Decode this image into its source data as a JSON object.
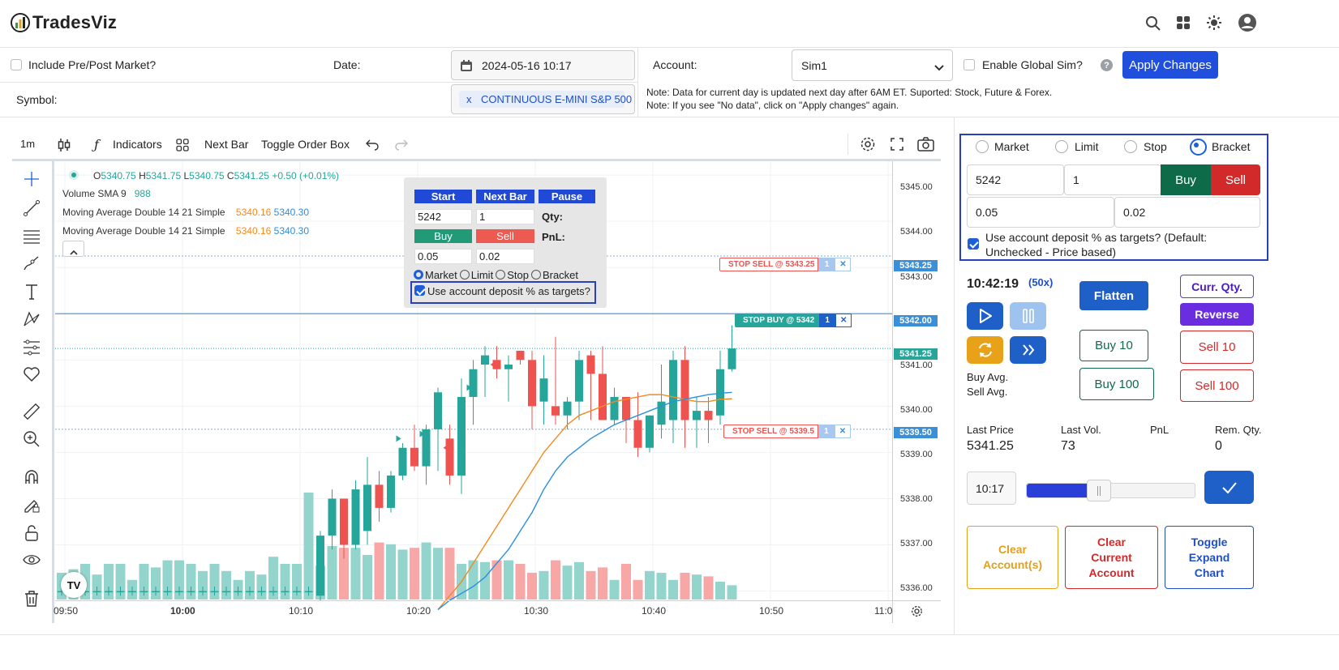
{
  "app": {
    "name": "TradesViz"
  },
  "controls": {
    "include_prepost_label": "Include Pre/Post Market?",
    "date_label": "Date:",
    "date_value": "2024-05-16 10:17",
    "account_label": "Account:",
    "account_value": "Sim1",
    "enable_global_sim_label": "Enable Global Sim?",
    "help_glyph": "?",
    "apply_label": "Apply Changes",
    "symbol_label": "Symbol:",
    "symbol_remove": "x",
    "symbol_value": "CONTINUOUS E-MINI S&P 500",
    "note1": "Note: Data for current day is updated next day after 6AM ET. Suported: Stock, Future & Forex.",
    "note2": "Note: If you see \"No data\", click on \"Apply changes\" again."
  },
  "toolbar": {
    "interval": "1m",
    "indicators": "Indicators",
    "next_bar": "Next Bar",
    "toggle_order_box": "Toggle Order Box"
  },
  "legend": {
    "ohlc": [
      {
        "k": "O",
        "v": "5340.75"
      },
      {
        "k": "H",
        "v": "5341.75"
      },
      {
        "k": "L",
        "v": "5340.75"
      },
      {
        "k": "C",
        "v": "5341.25"
      }
    ],
    "change": "+0.50 (+0.01%)",
    "volume_label": "Volume SMA 9",
    "volume_value": "988",
    "ma1_label": "Moving Average Double 14 21 Simple",
    "ma1_v1": "5340.16",
    "ma1_v2": "5340.30",
    "ma2_label": "Moving Average Double 14 21 Simple",
    "ma2_v1": "5340.16",
    "ma2_v2": "5340.30",
    "collapse": "^"
  },
  "chart_order_box": {
    "start": "Start",
    "next_bar": "Next Bar",
    "pause": "Pause",
    "price": "5242",
    "qty_value": "1",
    "qty_label": "Qty:",
    "buy": "Buy",
    "sell": "Sell",
    "pnl_label": "PnL:",
    "tp": "0.05",
    "sl": "0.02",
    "types": [
      "Market",
      "Limit",
      "Stop",
      "Bracket"
    ],
    "use_deposit": "Use account deposit % as targets?"
  },
  "orders": [
    {
      "label": "STOP SELL @ 5343.25",
      "qty": "1",
      "price": "5343.25"
    },
    {
      "label": "STOP BUY @ 5342",
      "qty": "1",
      "price": "5342.00"
    },
    {
      "label": "STOP SELL @ 5339.5",
      "qty": "1",
      "price": "5339.50"
    }
  ],
  "close_x": "✕",
  "last_tag": "5341.25",
  "y_axis": [
    "5345.00",
    "5344.00",
    "5343.00",
    "5341.00",
    "5340.00",
    "5339.00",
    "5338.00",
    "5337.00",
    "5336.00"
  ],
  "x_axis": [
    "09:50",
    "10:00",
    "10:10",
    "10:20",
    "10:30",
    "10:40",
    "10:50",
    "11:0"
  ],
  "tv_logo": "TV",
  "panel": {
    "order_types": [
      "Market",
      "Limit",
      "Stop",
      "Bracket"
    ],
    "price": "5242",
    "qty": "1",
    "buy": "Buy",
    "sell": "Sell",
    "tp": "0.05",
    "sl": "0.02",
    "use_deposit": "Use account deposit % as targets? (Default: Unchecked - Price based)",
    "time": "10:42:19",
    "speed": "(50x)",
    "flatten": "Flatten",
    "curr_qty": "Curr. Qty.",
    "reverse": "Reverse",
    "buy10": "Buy 10",
    "sell10": "Sell 10",
    "buy100": "Buy 100",
    "sell100": "Sell 100",
    "buy_avg": "Buy Avg.",
    "sell_avg": "Sell Avg.",
    "stats": [
      {
        "label": "Last Price",
        "value": "5341.25"
      },
      {
        "label": "Last Vol.",
        "value": "73"
      },
      {
        "label": "PnL",
        "value": ""
      },
      {
        "label": "Rem. Qty.",
        "value": "0"
      }
    ],
    "slider_time": "10:17",
    "slider_fraction": 0.43,
    "clear_accounts": "Clear Account(s)",
    "clear_current": "Clear Current Account",
    "toggle_expand": "Toggle Expand Chart"
  },
  "colors": {
    "up": "#26a69a",
    "down": "#ef5350",
    "accent": "#1e5fd8",
    "ma_fast": "#f5891f",
    "ma_slow": "#2b8fe0"
  },
  "chart_data": {
    "type": "candlestick",
    "ylim": [
      5335.8,
      5345.3
    ],
    "bars": [
      [
        5336.0,
        5336.1,
        5335.9,
        5336.0
      ],
      [
        5336.0,
        5336.1,
        5335.9,
        5336.0
      ],
      [
        5336.0,
        5336.1,
        5335.9,
        5336.0
      ],
      [
        5336.0,
        5336.1,
        5335.9,
        5336.0
      ],
      [
        5336.0,
        5336.1,
        5335.9,
        5336.0
      ],
      [
        5336.0,
        5336.1,
        5335.9,
        5336.0
      ],
      [
        5336.0,
        5336.1,
        5335.9,
        5336.0
      ],
      [
        5336.0,
        5336.1,
        5335.9,
        5336.0
      ],
      [
        5336.0,
        5336.1,
        5335.9,
        5336.0
      ],
      [
        5336.0,
        5336.1,
        5335.9,
        5336.0
      ],
      [
        5336.0,
        5336.1,
        5335.9,
        5336.0
      ],
      [
        5336.0,
        5336.1,
        5335.9,
        5336.0
      ],
      [
        5336.0,
        5336.1,
        5335.9,
        5336.0
      ],
      [
        5336.0,
        5336.1,
        5335.9,
        5336.0
      ],
      [
        5336.0,
        5336.1,
        5335.9,
        5336.0
      ],
      [
        5336.0,
        5336.1,
        5335.9,
        5336.0
      ],
      [
        5336.0,
        5336.1,
        5335.9,
        5336.0
      ],
      [
        5336.0,
        5336.1,
        5335.9,
        5336.0
      ],
      [
        5336.0,
        5336.1,
        5335.9,
        5336.0
      ],
      [
        5336.0,
        5336.1,
        5335.9,
        5336.0
      ],
      [
        5336.0,
        5336.1,
        5335.9,
        5336.0
      ],
      [
        5336.0,
        5336.1,
        5335.9,
        5336.0
      ],
      [
        5335.9,
        5337.3,
        5335.8,
        5337.2
      ],
      [
        5337.2,
        5338.2,
        5336.9,
        5338.0
      ],
      [
        5338.0,
        5338.0,
        5336.7,
        5337.0
      ],
      [
        5337.0,
        5338.4,
        5336.9,
        5338.2
      ],
      [
        5337.3,
        5338.9,
        5337.0,
        5338.3
      ],
      [
        5338.3,
        5338.6,
        5337.5,
        5337.8
      ],
      [
        5337.8,
        5338.6,
        5337.7,
        5338.5
      ],
      [
        5338.5,
        5339.2,
        5338.4,
        5339.1
      ],
      [
        5339.1,
        5339.6,
        5338.6,
        5338.7
      ],
      [
        5338.7,
        5339.6,
        5338.3,
        5339.5
      ],
      [
        5339.5,
        5340.4,
        5338.6,
        5340.3
      ],
      [
        5339.3,
        5339.6,
        5338.3,
        5338.5
      ],
      [
        5338.5,
        5340.6,
        5338.1,
        5340.2
      ],
      [
        5340.2,
        5341.0,
        5339.6,
        5340.8
      ],
      [
        5340.9,
        5341.3,
        5340.2,
        5341.1
      ],
      [
        5341.0,
        5341.3,
        5340.6,
        5340.8
      ],
      [
        5340.8,
        5341.1,
        5340.1,
        5340.9
      ],
      [
        5341.2,
        5341.2,
        5340.9,
        5341.0
      ],
      [
        5341.0,
        5341.2,
        5339.5,
        5340.0
      ],
      [
        5340.1,
        5341.1,
        5339.6,
        5340.6
      ],
      [
        5340.0,
        5341.5,
        5339.6,
        5339.8
      ],
      [
        5339.8,
        5340.2,
        5339.5,
        5340.1
      ],
      [
        5340.1,
        5341.2,
        5339.7,
        5341.0
      ],
      [
        5341.1,
        5341.2,
        5339.7,
        5340.7
      ],
      [
        5340.7,
        5341.3,
        5339.7,
        5339.7
      ],
      [
        5339.7,
        5340.4,
        5339.6,
        5340.2
      ],
      [
        5340.2,
        5340.2,
        5339.2,
        5339.7
      ],
      [
        5339.7,
        5340.3,
        5338.9,
        5339.1
      ],
      [
        5339.1,
        5339.8,
        5339.0,
        5339.8
      ],
      [
        5339.6,
        5340.9,
        5339.3,
        5340.1
      ],
      [
        5339.7,
        5341.2,
        5339.2,
        5341.0
      ],
      [
        5341.0,
        5341.3,
        5339.1,
        5339.7
      ],
      [
        5339.7,
        5340.2,
        5339.1,
        5339.9
      ],
      [
        5339.9,
        5340.2,
        5339.2,
        5339.7
      ],
      [
        5339.8,
        5341.2,
        5339.6,
        5340.8
      ],
      [
        5340.8,
        5341.75,
        5340.75,
        5341.25
      ]
    ],
    "volume": [
      0.15,
      0.17,
      0.2,
      0.14,
      0.2,
      0.2,
      0.11,
      0.2,
      0.18,
      0.22,
      0.22,
      0.2,
      0.16,
      0.2,
      0.16,
      0.11,
      0.16,
      0.14,
      0.24,
      0.2,
      0.2,
      0.6,
      0.19,
      0.3,
      0.29,
      0.29,
      0.25,
      0.32,
      0.31,
      0.28,
      0.29,
      0.32,
      0.29,
      0.29,
      0.2,
      0.22,
      0.21,
      0.22,
      0.22,
      0.2,
      0.15,
      0.16,
      0.22,
      0.19,
      0.21,
      0.16,
      0.18,
      0.11,
      0.2,
      0.11,
      0.16,
      0.15,
      0.11,
      0.15,
      0.14,
      0.13,
      0.1,
      0.08
    ],
    "ma_fast": [
      5335.6,
      5335.9,
      5336.2,
      5336.6,
      5337.0,
      5337.4,
      5337.8,
      5338.2,
      5338.6,
      5339.0,
      5339.3,
      5339.6,
      5339.8,
      5339.9,
      5340.0,
      5340.1,
      5340.15,
      5340.2,
      5340.25,
      5340.25,
      5340.2,
      5340.15,
      5340.1,
      5340.1,
      5340.15,
      5340.16
    ],
    "ma_slow": [
      5335.6,
      5335.8,
      5335.95,
      5336.1,
      5336.3,
      5336.6,
      5336.9,
      5337.3,
      5337.7,
      5338.2,
      5338.6,
      5338.9,
      5339.1,
      5339.3,
      5339.45,
      5339.6,
      5339.7,
      5339.8,
      5339.9,
      5340.0,
      5340.1,
      5340.15,
      5340.2,
      5340.25,
      5340.28,
      5340.3
    ],
    "trade_markers": [
      {
        "bar": 29,
        "price": 5339.3,
        "side": "buy"
      },
      {
        "bar": 31,
        "price": 5339.4,
        "side": "buy"
      },
      {
        "bar": 33,
        "price": 5339.1,
        "side": "sell"
      },
      {
        "bar": 35,
        "price": 5340.4,
        "side": "buy"
      },
      {
        "bar": 37,
        "price": 5340.9,
        "side": "sell"
      }
    ]
  }
}
